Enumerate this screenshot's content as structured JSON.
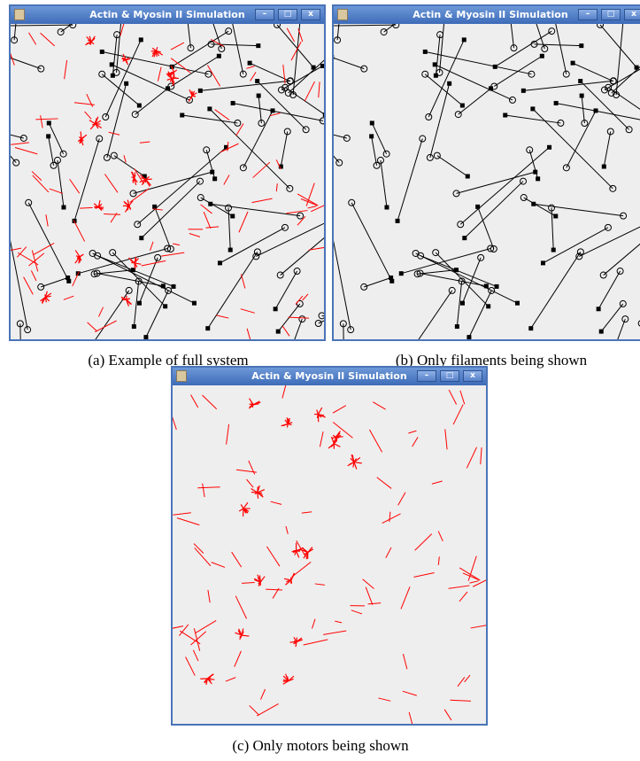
{
  "figure": {
    "panels": [
      {
        "window_title": "Actin & Myosin II Simulation",
        "caption": "(a) Example of full system"
      },
      {
        "window_title": "Actin & Myosin II Simulation",
        "caption": "(b) Only filaments being shown"
      },
      {
        "window_title": "Actin & Myosin II Simulation",
        "caption": "(c) Only motors being shown"
      }
    ]
  }
}
